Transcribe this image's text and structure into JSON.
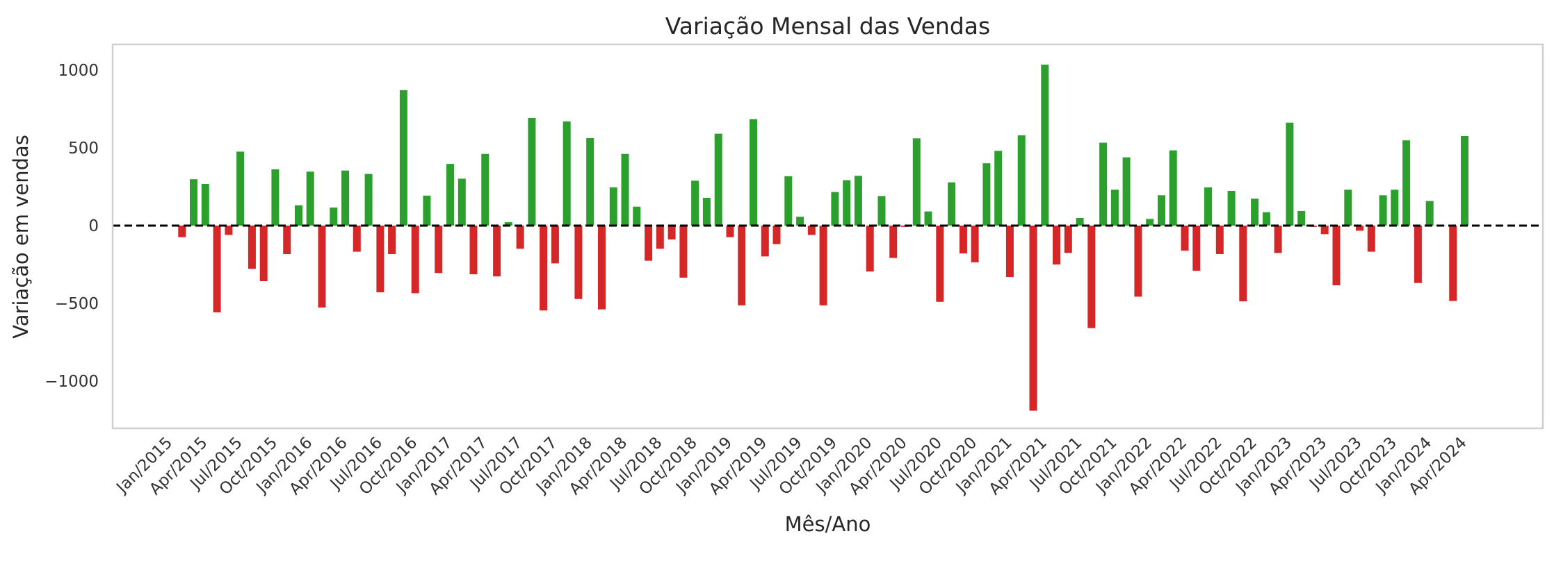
{
  "chart": {
    "title": "Variação Mensal das Vendas",
    "xlabel": "Mês/Ano",
    "ylabel": "Variação em vendas",
    "positive_color": "#2ca02c",
    "negative_color": "#d62728",
    "zero_line_color": "#000000",
    "frame_color": "#d0d0d0"
  },
  "chart_data": {
    "type": "bar",
    "title": "Variação Mensal das Vendas",
    "xlabel": "Mês/Ano",
    "ylabel": "Variação em vendas",
    "ylim": [
      -1300,
      1160
    ],
    "yticks": [
      1000,
      500,
      0,
      -500,
      -1000
    ],
    "ytick_labels": [
      "1000",
      "500",
      "0",
      "−500",
      "−1000"
    ],
    "grid": false,
    "legend": null,
    "reference_line": {
      "y": 0,
      "style": "dashed",
      "color": "#000000"
    },
    "x_start": "Jan/2015",
    "xtick_labels": [
      "Jan/2015",
      "Apr/2015",
      "Jul/2015",
      "Oct/2015",
      "Jan/2016",
      "Apr/2016",
      "Jul/2016",
      "Oct/2016",
      "Jan/2017",
      "Apr/2017",
      "Jul/2017",
      "Oct/2017",
      "Jan/2018",
      "Apr/2018",
      "Jul/2018",
      "Oct/2018",
      "Jan/2019",
      "Apr/2019",
      "Jul/2019",
      "Oct/2019",
      "Jan/2020",
      "Apr/2020",
      "Jul/2020",
      "Oct/2020",
      "Jan/2021",
      "Apr/2021",
      "Jul/2021",
      "Oct/2021",
      "Jan/2022",
      "Apr/2022",
      "Jul/2022",
      "Oct/2022",
      "Jan/2023",
      "Apr/2023",
      "Jul/2023",
      "Oct/2023",
      "Jan/2024",
      "Apr/2024"
    ],
    "bar_colors_rule": "green if value >= 0 else red",
    "categories_note": "Monthly bars from Feb/2015 to Apr/2024 (Jan/2015 has no bar)",
    "values": [
      -74,
      298,
      268,
      -558,
      -60,
      476,
      -278,
      -357,
      362,
      -183,
      131,
      347,
      -527,
      116,
      354,
      -168,
      332,
      -429,
      -183,
      871,
      -435,
      193,
      -305,
      397,
      302,
      -313,
      461,
      -327,
      22,
      -149,
      692,
      -546,
      -243,
      670,
      -472,
      563,
      -539,
      246,
      461,
      122,
      -226,
      -149,
      -89,
      -335,
      289,
      179,
      591,
      -74,
      -513,
      685,
      -198,
      -119,
      318,
      57,
      -60,
      -513,
      216,
      292,
      320,
      -295,
      190,
      -208,
      -8,
      561,
      91,
      -490,
      278,
      -179,
      -236,
      401,
      481,
      -331,
      581,
      -1190,
      1035,
      -250,
      -176,
      49,
      -659,
      533,
      231,
      439,
      -457,
      43,
      195,
      484,
      -161,
      -290,
      246,
      -183,
      223,
      -487,
      173,
      86,
      -176,
      662,
      94,
      -8,
      -55,
      -384,
      231,
      -33,
      -168,
      195,
      231,
      548,
      -369,
      158,
      3,
      -485,
      576
    ]
  }
}
